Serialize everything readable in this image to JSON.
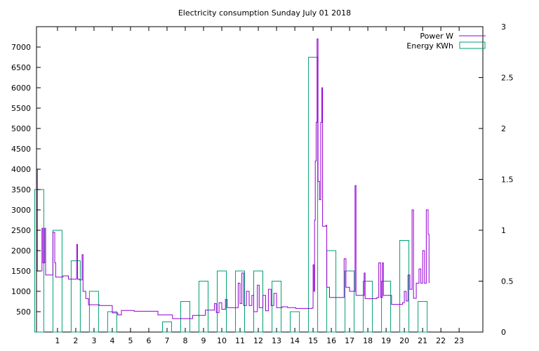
{
  "chart_data": {
    "type": "bar",
    "title": "Electricity consumption Sunday July 01 2018",
    "xlabel": "",
    "ylabel": "",
    "y2label": "",
    "xlim": [
      -0.15,
      24.3
    ],
    "ylim": [
      0,
      7500
    ],
    "y2lim": [
      0,
      3
    ],
    "x_ticks": [
      "1",
      "2",
      "3",
      "4",
      "5",
      "6",
      "7",
      "8",
      "9",
      "10",
      "11",
      "12",
      "13",
      "14",
      "15",
      "16",
      "17",
      "18",
      "19",
      "20",
      "21",
      "22",
      "23"
    ],
    "y_ticks": [
      "500",
      "1000",
      "1500",
      "2000",
      "2500",
      "3000",
      "3500",
      "4000",
      "4500",
      "5000",
      "5500",
      "6000",
      "6500",
      "7000"
    ],
    "y2_ticks": [
      "0",
      "0.5",
      "1",
      "1.5",
      "2",
      "2.5",
      "3"
    ],
    "grid": false,
    "legend_position": "top-right",
    "colors": {
      "power": "#9400d3",
      "energy": "#009e73"
    },
    "series": [
      {
        "name": "Power W",
        "type": "step",
        "axis": "left",
        "points": [
          [
            -0.15,
            4000
          ],
          [
            -0.1,
            1500
          ],
          [
            0.1,
            1500
          ],
          [
            0.15,
            2550
          ],
          [
            0.2,
            1700
          ],
          [
            0.3,
            2550
          ],
          [
            0.35,
            1400
          ],
          [
            0.7,
            1400
          ],
          [
            0.75,
            2450
          ],
          [
            0.85,
            1700
          ],
          [
            0.9,
            1350
          ],
          [
            1.3,
            1380
          ],
          [
            1.6,
            1300
          ],
          [
            2.05,
            2150
          ],
          [
            2.1,
            1300
          ],
          [
            2.2,
            1280
          ],
          [
            2.35,
            1900
          ],
          [
            2.4,
            1000
          ],
          [
            2.55,
            820
          ],
          [
            2.7,
            670
          ],
          [
            3.3,
            650
          ],
          [
            4.0,
            470
          ],
          [
            4.3,
            420
          ],
          [
            4.5,
            530
          ],
          [
            5.2,
            510
          ],
          [
            6.5,
            420
          ],
          [
            7.3,
            330
          ],
          [
            8.4,
            410
          ],
          [
            9.1,
            540
          ],
          [
            9.6,
            700
          ],
          [
            9.7,
            480
          ],
          [
            9.85,
            720
          ],
          [
            10.0,
            560
          ],
          [
            10.2,
            800
          ],
          [
            10.3,
            600
          ],
          [
            10.9,
            1200
          ],
          [
            11.0,
            700
          ],
          [
            11.1,
            1450
          ],
          [
            11.2,
            650
          ],
          [
            11.35,
            1000
          ],
          [
            11.5,
            650
          ],
          [
            11.65,
            900
          ],
          [
            11.75,
            500
          ],
          [
            11.95,
            1150
          ],
          [
            12.05,
            600
          ],
          [
            12.25,
            900
          ],
          [
            12.4,
            520
          ],
          [
            12.55,
            1050
          ],
          [
            12.7,
            650
          ],
          [
            12.85,
            950
          ],
          [
            13.0,
            600
          ],
          [
            13.3,
            620
          ],
          [
            13.6,
            600
          ],
          [
            14.05,
            580
          ],
          [
            14.95,
            590
          ],
          [
            15.0,
            1650
          ],
          [
            15.05,
            1000
          ],
          [
            15.08,
            2750
          ],
          [
            15.12,
            4200
          ],
          [
            15.17,
            5150
          ],
          [
            15.22,
            7200
          ],
          [
            15.27,
            3700
          ],
          [
            15.35,
            3250
          ],
          [
            15.42,
            5150
          ],
          [
            15.48,
            6000
          ],
          [
            15.52,
            2600
          ],
          [
            15.7,
            2620
          ],
          [
            15.75,
            1100
          ],
          [
            15.9,
            850
          ],
          [
            16.5,
            850
          ],
          [
            16.7,
            1800
          ],
          [
            16.8,
            1100
          ],
          [
            17.0,
            1000
          ],
          [
            17.3,
            3600
          ],
          [
            17.35,
            900
          ],
          [
            17.8,
            1450
          ],
          [
            17.85,
            820
          ],
          [
            18.5,
            850
          ],
          [
            18.6,
            1700
          ],
          [
            18.7,
            850
          ],
          [
            18.8,
            1700
          ],
          [
            18.85,
            900
          ],
          [
            19.3,
            680
          ],
          [
            19.9,
            720
          ],
          [
            20.0,
            1000
          ],
          [
            20.1,
            760
          ],
          [
            20.2,
            1400
          ],
          [
            20.3,
            1050
          ],
          [
            20.42,
            3000
          ],
          [
            20.5,
            830
          ],
          [
            20.65,
            1200
          ],
          [
            20.8,
            1550
          ],
          [
            20.9,
            1200
          ],
          [
            21.0,
            2000
          ],
          [
            21.1,
            1200
          ],
          [
            21.2,
            3000
          ],
          [
            21.3,
            2400
          ],
          [
            21.35,
            1200
          ]
        ]
      },
      {
        "name": "Energy KWh",
        "type": "bar",
        "axis": "right",
        "categories": [
          "0",
          "1",
          "2",
          "3",
          "4",
          "5",
          "6",
          "7",
          "8",
          "9",
          "10",
          "11",
          "12",
          "13",
          "14",
          "15",
          "16",
          "17",
          "18",
          "19",
          "20",
          "21",
          "22",
          "23"
        ],
        "values": [
          1.4,
          1.0,
          0.7,
          0.4,
          0.2,
          0.0,
          0.0,
          0.1,
          0.3,
          0.5,
          0.6,
          0.6,
          0.6,
          0.5,
          0.2,
          2.7,
          0.8,
          0.6,
          0.5,
          0.5,
          0.9,
          0.3,
          0.0,
          0.0
        ]
      }
    ]
  }
}
